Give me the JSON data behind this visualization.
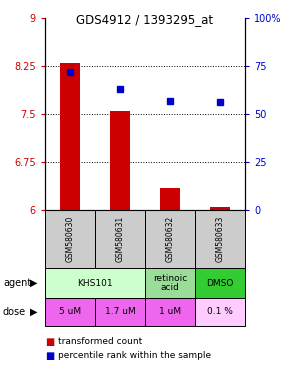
{
  "title": "GDS4912 / 1393295_at",
  "samples": [
    "GSM580630",
    "GSM580631",
    "GSM580632",
    "GSM580633"
  ],
  "bar_values": [
    8.3,
    7.55,
    6.35,
    6.05
  ],
  "bar_baseline": 6.0,
  "percentile_values": [
    72,
    63,
    57,
    56
  ],
  "ylim_left": [
    6.0,
    9.0
  ],
  "ylim_right": [
    0,
    100
  ],
  "yticks_left": [
    6,
    6.75,
    7.5,
    8.25,
    9
  ],
  "yticks_right": [
    0,
    25,
    50,
    75,
    100
  ],
  "ytick_labels_right": [
    "0",
    "25",
    "50",
    "75",
    "100%"
  ],
  "hlines": [
    6.75,
    7.5,
    8.25
  ],
  "bar_color": "#cc0000",
  "dot_color": "#0000cc",
  "agent_groups": [
    {
      "start": 0,
      "end": 2,
      "label": "KHS101",
      "color": "#ccffcc"
    },
    {
      "start": 2,
      "end": 3,
      "label": "retinoic\nacid",
      "color": "#99dd99"
    },
    {
      "start": 3,
      "end": 4,
      "label": "DMSO",
      "color": "#33cc33"
    }
  ],
  "dose_labels": [
    "5 uM",
    "1.7 uM",
    "1 uM",
    "0.1 %"
  ],
  "dose_colors": [
    "#ee66ee",
    "#ee66ee",
    "#ee66ee",
    "#ffccff"
  ],
  "sample_bg_color": "#cccccc",
  "legend_bar_color": "#cc0000",
  "legend_dot_color": "#0000cc"
}
